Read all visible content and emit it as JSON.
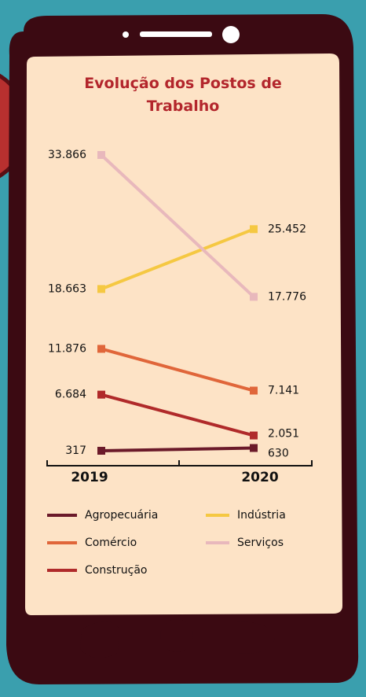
{
  "chart_data": {
    "type": "line",
    "title": "Evolução dos Postos de Trabalho",
    "categories": [
      "2019",
      "2020"
    ],
    "series": [
      {
        "name": "Agropecuária",
        "color": "#6b1a2a",
        "values": [
          317,
          630
        ],
        "value_labels": [
          "317",
          "630"
        ]
      },
      {
        "name": "Indústria",
        "color": "#f5c842",
        "values": [
          18663,
          25452
        ],
        "value_labels": [
          "18.663",
          "25.452"
        ]
      },
      {
        "name": "Comércio",
        "color": "#e0663a",
        "values": [
          11876,
          7141
        ],
        "value_labels": [
          "11.876",
          "7.141"
        ]
      },
      {
        "name": "Serviços",
        "color": "#e8b8bc",
        "values": [
          33866,
          17776
        ],
        "value_labels": [
          "33.866",
          "17.776"
        ]
      },
      {
        "name": "Construção",
        "color": "#b02a2a",
        "values": [
          6684,
          2051
        ],
        "value_labels": [
          "6.684",
          "2.051"
        ]
      }
    ]
  }
}
